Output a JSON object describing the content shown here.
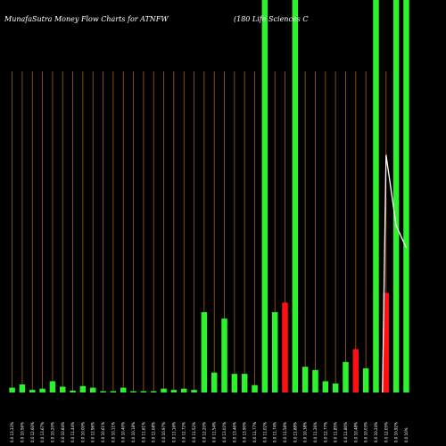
{
  "chart_data": {
    "type": "bar",
    "title": "MunafaSutra  Money Flow  Charts for ATNFW",
    "subtitle": "(180  Life  Sciences  C",
    "xlabel": "",
    "ylabel": "",
    "ylim": [
      0,
      100
    ],
    "grid": true,
    "x_tick_labels": [
      "0.0 13.33%",
      "0.0 10.56%",
      "0.0 12.60%",
      "0.0 13.67%",
      "0.0 10.20%",
      "0.0 10.84%",
      "0.0 11.44%",
      "0.0 10.00%",
      "0.0 12.96%",
      "0.0 10.61%",
      "0.0 10.11%",
      "0.0 10.40%",
      "0.0 10.18%",
      "0.0 11.61%",
      "0.0 12.08%",
      "0.0 10.97%",
      "0.0 11.16%",
      "0.0 12.72%",
      "0.0 11.52%",
      "0.0 12.20%",
      "0.0 11.54%",
      "0.0 13.02%",
      "0.0 13.46%",
      "0.0 13.90%",
      "0.0 11.77%",
      "0.0 11.02%",
      "0.0 11.74%",
      "0.0 11.58%",
      "0.0 11.88%",
      "0.0 10.38%",
      "0.0 11.26%",
      "0.0 12.77%",
      "0.0 11.85%",
      "0.0 11.80%",
      "0.0 10.48%",
      "0.0 10.03%",
      "0.0 10.24%",
      "0.0 12.05%",
      "0.0 10.92%",
      "0.0 10%"
    ],
    "values": [
      1.5,
      2.5,
      0.8,
      1.2,
      3.5,
      1.8,
      0.6,
      2.0,
      1.5,
      0.4,
      0.4,
      1.5,
      0.4,
      0.4,
      0.4,
      1.2,
      0.8,
      1.2,
      0.8,
      25.0,
      6.2,
      23.0,
      5.8,
      5.8,
      2.3,
      100,
      25.0,
      28.0,
      100,
      8.0,
      7.0,
      3.5,
      2.8,
      9.5,
      13.5,
      7.5,
      100,
      31.0,
      100,
      100
    ],
    "directions": [
      "up",
      "up",
      "up",
      "up",
      "up",
      "up",
      "up",
      "up",
      "up",
      "up",
      "up",
      "up",
      "up",
      "up",
      "up",
      "up",
      "up",
      "up",
      "up",
      "up",
      "up",
      "up",
      "up",
      "up",
      "up",
      "up",
      "up",
      "down",
      "up",
      "up",
      "up",
      "up",
      "up",
      "up",
      "down",
      "up",
      "up",
      "down",
      "up",
      "up"
    ],
    "line": [
      null,
      null,
      null,
      null,
      null,
      null,
      null,
      null,
      null,
      null,
      null,
      null,
      null,
      null,
      null,
      null,
      null,
      null,
      null,
      null,
      null,
      null,
      null,
      null,
      null,
      null,
      null,
      null,
      null,
      null,
      null,
      null,
      null,
      null,
      null,
      null,
      null,
      74.0,
      52.0,
      45.0
    ],
    "colors": {
      "background": "#000000",
      "bar_up": "#2ef22e",
      "bar_down": "#ff1010",
      "grid": "#a0601c",
      "line": "#ffffff",
      "text": "#ffffff"
    }
  }
}
